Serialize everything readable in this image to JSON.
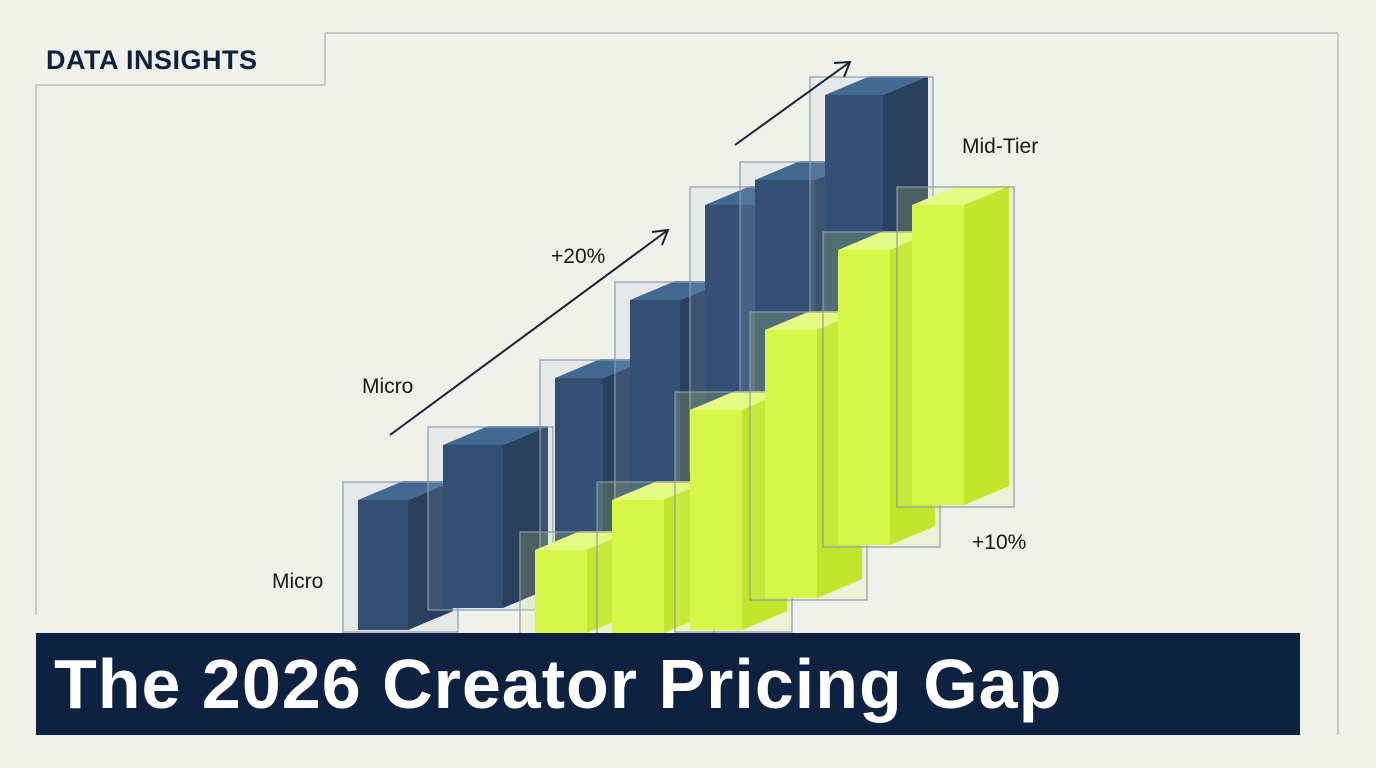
{
  "header": {
    "label": "DATA INSIGHTS"
  },
  "annotations": {
    "micro_upper": "Micro",
    "micro_lower": "Micro",
    "growth_left": "+20%",
    "tier_right": "Mid-Tier",
    "growth_right": "+10%"
  },
  "title": "The 2026 Creator Pricing Gap"
}
